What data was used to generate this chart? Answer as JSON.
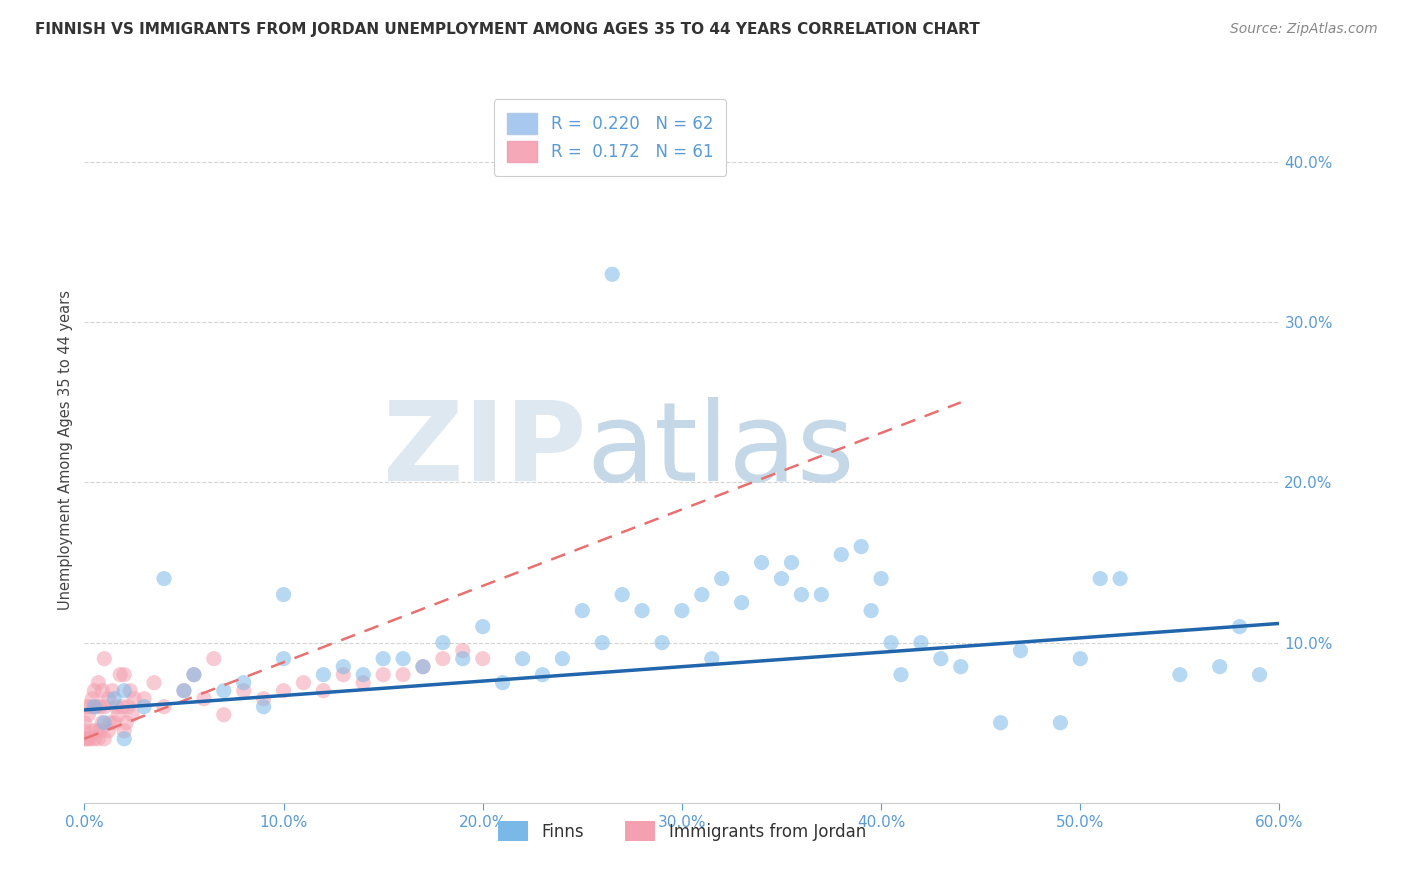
{
  "title": "FINNISH VS IMMIGRANTS FROM JORDAN UNEMPLOYMENT AMONG AGES 35 TO 44 YEARS CORRELATION CHART",
  "source": "Source: ZipAtlas.com",
  "ylabel": "Unemployment Among Ages 35 to 44 years",
  "xlim": [
    0,
    0.6
  ],
  "ylim": [
    0,
    0.44
  ],
  "xticks": [
    0.0,
    0.1,
    0.2,
    0.3,
    0.4,
    0.5,
    0.6
  ],
  "yticks": [
    0.1,
    0.2,
    0.3,
    0.4
  ],
  "xtick_labels": [
    "0.0%",
    "10.0%",
    "20.0%",
    "30.0%",
    "40.0%",
    "50.0%",
    "60.0%"
  ],
  "ytick_labels": [
    "10.0%",
    "20.0%",
    "30.0%",
    "40.0%"
  ],
  "legend_label1": "R =  0.220   N = 62",
  "legend_label2": "R =  0.172   N = 61",
  "legend_color1": "#a8c8f0",
  "legend_color2": "#f4a8b8",
  "bottom_legend1": "Finns",
  "bottom_legend2": "Immigrants from Jordan",
  "blue_scatter_color": "#7ab8e8",
  "pink_scatter_color": "#f4a0b0",
  "blue_line_color": "#2166ac",
  "pink_line_color": "#e87070",
  "blue_trend_x": [
    0.0,
    0.6
  ],
  "blue_trend_y": [
    0.058,
    0.112
  ],
  "pink_trend_x": [
    0.0,
    0.44
  ],
  "pink_trend_y": [
    0.04,
    0.25
  ],
  "blue_scatter_x": [
    0.005,
    0.01,
    0.015,
    0.02,
    0.02,
    0.03,
    0.04,
    0.05,
    0.055,
    0.07,
    0.08,
    0.09,
    0.1,
    0.1,
    0.12,
    0.13,
    0.14,
    0.15,
    0.16,
    0.17,
    0.18,
    0.19,
    0.2,
    0.21,
    0.22,
    0.23,
    0.24,
    0.25,
    0.26,
    0.265,
    0.27,
    0.28,
    0.29,
    0.3,
    0.31,
    0.315,
    0.32,
    0.33,
    0.34,
    0.35,
    0.355,
    0.36,
    0.37,
    0.38,
    0.39,
    0.395,
    0.4,
    0.405,
    0.41,
    0.42,
    0.43,
    0.44,
    0.46,
    0.47,
    0.49,
    0.5,
    0.51,
    0.52,
    0.55,
    0.57,
    0.58,
    0.59
  ],
  "blue_scatter_y": [
    0.06,
    0.05,
    0.065,
    0.07,
    0.04,
    0.06,
    0.14,
    0.07,
    0.08,
    0.07,
    0.075,
    0.06,
    0.09,
    0.13,
    0.08,
    0.085,
    0.08,
    0.09,
    0.09,
    0.085,
    0.1,
    0.09,
    0.11,
    0.075,
    0.09,
    0.08,
    0.09,
    0.12,
    0.1,
    0.33,
    0.13,
    0.12,
    0.1,
    0.12,
    0.13,
    0.09,
    0.14,
    0.125,
    0.15,
    0.14,
    0.15,
    0.13,
    0.13,
    0.155,
    0.16,
    0.12,
    0.14,
    0.1,
    0.08,
    0.1,
    0.09,
    0.085,
    0.05,
    0.095,
    0.05,
    0.09,
    0.14,
    0.14,
    0.08,
    0.085,
    0.11,
    0.08
  ],
  "pink_scatter_x": [
    0.0,
    0.0,
    0.0,
    0.001,
    0.001,
    0.002,
    0.002,
    0.003,
    0.003,
    0.004,
    0.004,
    0.005,
    0.005,
    0.006,
    0.006,
    0.007,
    0.007,
    0.008,
    0.008,
    0.009,
    0.009,
    0.01,
    0.01,
    0.01,
    0.012,
    0.012,
    0.013,
    0.014,
    0.015,
    0.016,
    0.017,
    0.018,
    0.019,
    0.02,
    0.02,
    0.021,
    0.022,
    0.023,
    0.024,
    0.025,
    0.03,
    0.035,
    0.04,
    0.05,
    0.055,
    0.06,
    0.065,
    0.07,
    0.08,
    0.09,
    0.1,
    0.11,
    0.12,
    0.13,
    0.14,
    0.15,
    0.16,
    0.17,
    0.18,
    0.19,
    0.2
  ],
  "pink_scatter_y": [
    0.04,
    0.045,
    0.05,
    0.04,
    0.06,
    0.04,
    0.055,
    0.04,
    0.06,
    0.045,
    0.065,
    0.04,
    0.07,
    0.045,
    0.06,
    0.04,
    0.075,
    0.045,
    0.06,
    0.05,
    0.07,
    0.04,
    0.06,
    0.09,
    0.045,
    0.065,
    0.05,
    0.07,
    0.05,
    0.06,
    0.055,
    0.08,
    0.06,
    0.045,
    0.08,
    0.05,
    0.06,
    0.07,
    0.055,
    0.065,
    0.065,
    0.075,
    0.06,
    0.07,
    0.08,
    0.065,
    0.09,
    0.055,
    0.07,
    0.065,
    0.07,
    0.075,
    0.07,
    0.08,
    0.075,
    0.08,
    0.08,
    0.085,
    0.09,
    0.095,
    0.09
  ],
  "grid_color": "#d0d0d0",
  "bg_color": "#ffffff",
  "title_color": "#333333",
  "axis_tick_color": "#5b9bd5",
  "title_fontsize": 11,
  "source_fontsize": 10,
  "legend_fontsize": 12,
  "ylabel_fontsize": 10.5
}
